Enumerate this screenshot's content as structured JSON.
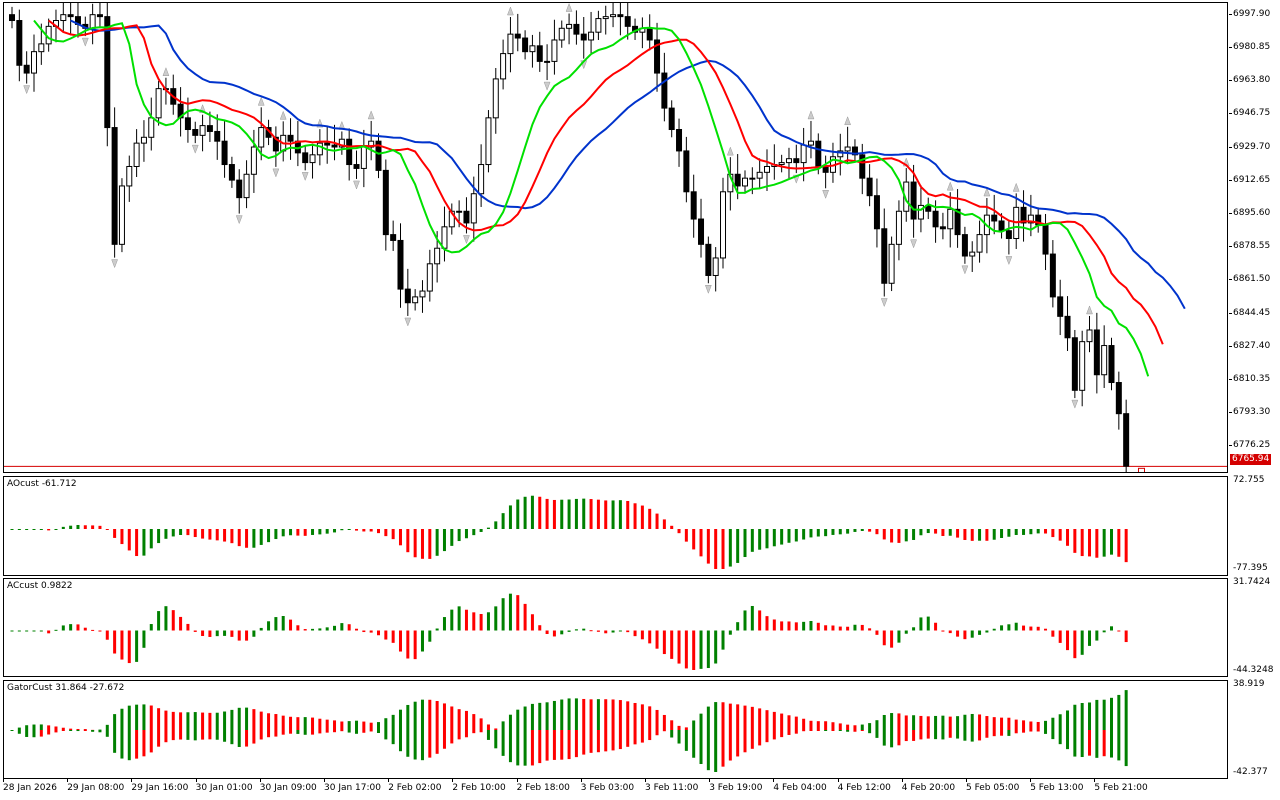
{
  "price_scale": [
    "6997.90",
    "6980.85",
    "6963.80",
    "6946.75",
    "6929.70",
    "6912.65",
    "6895.60",
    "6878.55",
    "6861.50",
    "6844.45",
    "6827.40",
    "6810.35",
    "6793.30",
    "6776.25"
  ],
  "current_price": "6765.94",
  "time_labels": [
    "28 Jan 2026",
    "29 Jan 08:00",
    "29 Jan 16:00",
    "30 Jan 01:00",
    "30 Jan 09:00",
    "30 Jan 17:00",
    "2 Feb 02:00",
    "2 Feb 10:00",
    "2 Feb 18:00",
    "3 Feb 03:00",
    "3 Feb 11:00",
    "3 Feb 19:00",
    "4 Feb 04:00",
    "4 Feb 12:00",
    "4 Feb 20:00",
    "5 Feb 05:00",
    "5 Feb 13:00",
    "5 Feb 21:00"
  ],
  "ao": {
    "title": "AOcust -61.712",
    "max": "72.755",
    "min": "-77.395"
  },
  "ac": {
    "title": "ACcust 0.9822",
    "max": "31.7424",
    "min": "-44.3248"
  },
  "gator": {
    "title": "GatorCust 31.864 -27.672",
    "max": "38.919",
    "min": "-42.377"
  },
  "colors": {
    "up": "#008000",
    "down": "#ff0000",
    "jaw": "#0033cc",
    "teeth": "#ff0000",
    "lips": "#00e000",
    "bid_line": "#d40000"
  },
  "chart_data": {
    "type": "candlestick",
    "symbol_timeframe": "",
    "ylim": [
      6762,
      7004
    ],
    "closes": [
      6995,
      6972,
      6968,
      6979,
      6983,
      6992,
      6995,
      6998,
      6997,
      6993,
      6991,
      6998,
      6997,
      6940,
      6880,
      6910,
      6920,
      6932,
      6935,
      6945,
      6960,
      6960,
      6952,
      6945,
      6939,
      6936,
      6941,
      6938,
      6933,
      6921,
      6913,
      6904,
      6916,
      6930,
      6940,
      6935,
      6928,
      6936,
      6933,
      6927,
      6922,
      6926,
      6932,
      6931,
      6930,
      6934,
      6921,
      6919,
      6930,
      6933,
      6918,
      6885,
      6882,
      6857,
      6850,
      6853,
      6856,
      6870,
      6878,
      6889,
      6897,
      6897,
      6891,
      6906,
      6921,
      6945,
      6965,
      6978,
      6988,
      6986,
      6979,
      6982,
      6974,
      6974,
      6985,
      6991,
      6993,
      6988,
      6985,
      6989,
      6996,
      6997,
      6998,
      6997,
      6992,
      6989,
      6991,
      6985,
      6968,
      6950,
      6939,
      6928,
      6907,
      6893,
      6880,
      6864,
      6873,
      6907,
      6916,
      6910,
      6914,
      6914,
      6917,
      6920,
      6921,
      6922,
      6924,
      6922,
      6931,
      6933,
      6920,
      6917,
      6925,
      6928,
      6930,
      6926,
      6914,
      6905,
      6888,
      6860,
      6880,
      6897,
      6912,
      6893,
      6900,
      6897,
      6889,
      6888,
      6898,
      6885,
      6874,
      6876,
      6885,
      6895,
      6892,
      6887,
      6883,
      6899,
      6891,
      6895,
      6890,
      6875,
      6853,
      6843,
      6832,
      6805,
      6830,
      6836,
      6813,
      6828,
      6809,
      6793,
      6766
    ]
  }
}
